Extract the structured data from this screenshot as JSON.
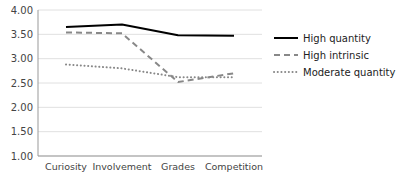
{
  "chart_data": {
    "type": "line",
    "categories": [
      "Curiosity",
      "Involvement",
      "Grades",
      "Competition"
    ],
    "series": [
      {
        "name": "High quantity",
        "color": "#000000",
        "line_style": "solid",
        "values": [
          3.65,
          3.7,
          3.48,
          3.47
        ]
      },
      {
        "name": "High intrinsic",
        "color": "#888888",
        "line_style": "dashed",
        "values": [
          3.54,
          3.52,
          2.52,
          2.7
        ]
      },
      {
        "name": "Moderate quantity",
        "color": "#888888",
        "line_style": "dotted",
        "values": [
          2.88,
          2.8,
          2.62,
          2.62
        ]
      }
    ],
    "ylim": [
      1.0,
      4.0
    ],
    "yticks": [
      {
        "value": 1.0,
        "label": "1.00"
      },
      {
        "value": 1.5,
        "label": "1.50"
      },
      {
        "value": 2.0,
        "label": "2.00"
      },
      {
        "value": 2.5,
        "label": "2.50"
      },
      {
        "value": 3.0,
        "label": "3.00"
      },
      {
        "value": 3.5,
        "label": "3.50"
      },
      {
        "value": 4.0,
        "label": "4.00"
      }
    ],
    "grid": true,
    "legend": "right"
  }
}
